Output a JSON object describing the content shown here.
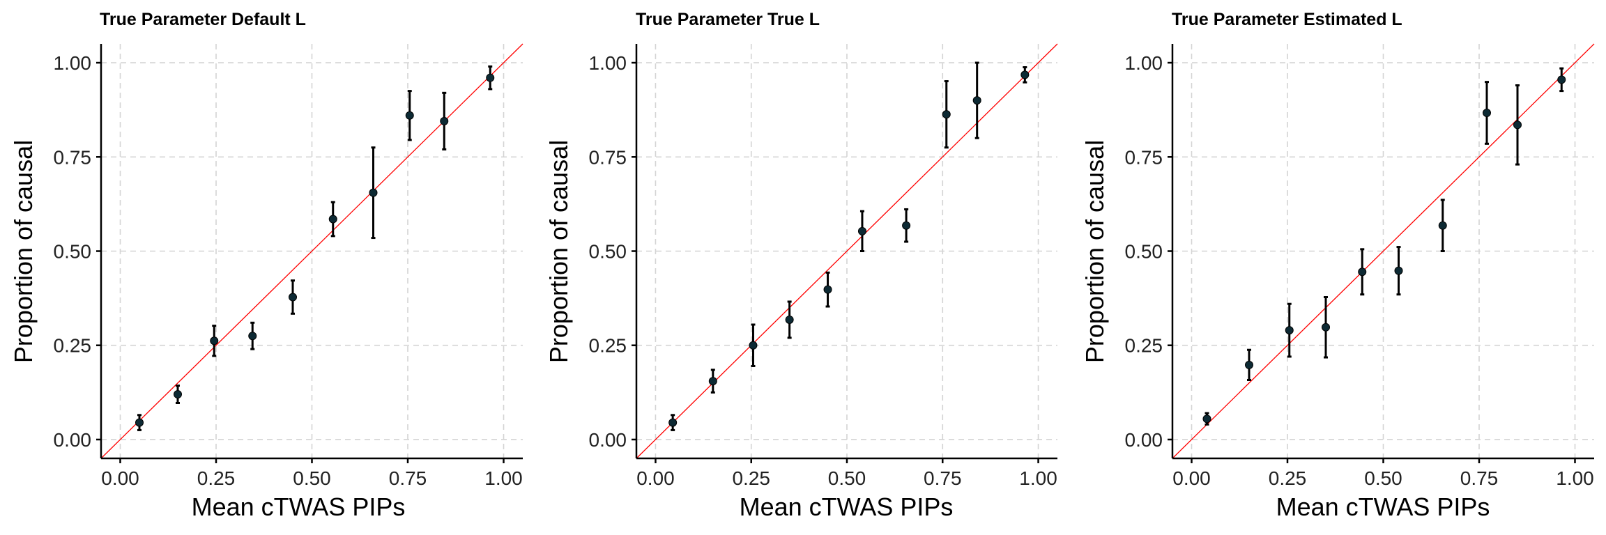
{
  "chart_data": [
    {
      "type": "scatter",
      "title": "True Parameter Default L",
      "xlabel": "Mean cTWAS PIPs",
      "ylabel": "Proportion of causal",
      "xlim": [
        -0.05,
        1.05
      ],
      "ylim": [
        -0.05,
        1.05
      ],
      "xticks": [
        "0.00",
        "0.25",
        "0.50",
        "0.75",
        "1.00"
      ],
      "yticks": [
        "0.00",
        "0.25",
        "0.50",
        "0.75",
        "1.00"
      ],
      "grid": true,
      "reference_line": "y = x",
      "points": [
        {
          "x": 0.05,
          "y": 0.045,
          "lo": 0.025,
          "hi": 0.065
        },
        {
          "x": 0.15,
          "y": 0.12,
          "lo": 0.097,
          "hi": 0.143
        },
        {
          "x": 0.245,
          "y": 0.262,
          "lo": 0.222,
          "hi": 0.302
        },
        {
          "x": 0.345,
          "y": 0.275,
          "lo": 0.24,
          "hi": 0.31
        },
        {
          "x": 0.45,
          "y": 0.378,
          "lo": 0.334,
          "hi": 0.422
        },
        {
          "x": 0.555,
          "y": 0.585,
          "lo": 0.54,
          "hi": 0.63
        },
        {
          "x": 0.66,
          "y": 0.655,
          "lo": 0.535,
          "hi": 0.775
        },
        {
          "x": 0.755,
          "y": 0.86,
          "lo": 0.795,
          "hi": 0.925
        },
        {
          "x": 0.845,
          "y": 0.845,
          "lo": 0.77,
          "hi": 0.92
        },
        {
          "x": 0.965,
          "y": 0.96,
          "lo": 0.93,
          "hi": 0.99
        }
      ]
    },
    {
      "type": "scatter",
      "title": "True Parameter True L",
      "xlabel": "Mean cTWAS PIPs",
      "ylabel": "Proportion of causal",
      "xlim": [
        -0.05,
        1.05
      ],
      "ylim": [
        -0.05,
        1.05
      ],
      "xticks": [
        "0.00",
        "0.25",
        "0.50",
        "0.75",
        "1.00"
      ],
      "yticks": [
        "0.00",
        "0.25",
        "0.50",
        "0.75",
        "1.00"
      ],
      "grid": true,
      "reference_line": "y = x",
      "points": [
        {
          "x": 0.045,
          "y": 0.045,
          "lo": 0.025,
          "hi": 0.065
        },
        {
          "x": 0.15,
          "y": 0.155,
          "lo": 0.125,
          "hi": 0.185
        },
        {
          "x": 0.255,
          "y": 0.25,
          "lo": 0.195,
          "hi": 0.305
        },
        {
          "x": 0.35,
          "y": 0.318,
          "lo": 0.27,
          "hi": 0.366
        },
        {
          "x": 0.45,
          "y": 0.398,
          "lo": 0.353,
          "hi": 0.443
        },
        {
          "x": 0.54,
          "y": 0.553,
          "lo": 0.5,
          "hi": 0.606
        },
        {
          "x": 0.655,
          "y": 0.568,
          "lo": 0.525,
          "hi": 0.611
        },
        {
          "x": 0.76,
          "y": 0.863,
          "lo": 0.775,
          "hi": 0.951
        },
        {
          "x": 0.84,
          "y": 0.9,
          "lo": 0.8,
          "hi": 1.0
        },
        {
          "x": 0.965,
          "y": 0.968,
          "lo": 0.948,
          "hi": 0.988
        }
      ]
    },
    {
      "type": "scatter",
      "title": "True Parameter Estimated L",
      "xlabel": "Mean cTWAS PIPs",
      "ylabel": "Proportion of causal",
      "xlim": [
        -0.05,
        1.05
      ],
      "ylim": [
        -0.05,
        1.05
      ],
      "xticks": [
        "0.00",
        "0.25",
        "0.50",
        "0.75",
        "1.00"
      ],
      "yticks": [
        "0.00",
        "0.25",
        "0.50",
        "0.75",
        "1.00"
      ],
      "grid": true,
      "reference_line": "y = x",
      "points": [
        {
          "x": 0.04,
          "y": 0.055,
          "lo": 0.04,
          "hi": 0.07
        },
        {
          "x": 0.15,
          "y": 0.198,
          "lo": 0.158,
          "hi": 0.238
        },
        {
          "x": 0.255,
          "y": 0.29,
          "lo": 0.22,
          "hi": 0.36
        },
        {
          "x": 0.35,
          "y": 0.298,
          "lo": 0.218,
          "hi": 0.378
        },
        {
          "x": 0.445,
          "y": 0.445,
          "lo": 0.385,
          "hi": 0.505
        },
        {
          "x": 0.54,
          "y": 0.448,
          "lo": 0.385,
          "hi": 0.511
        },
        {
          "x": 0.655,
          "y": 0.568,
          "lo": 0.5,
          "hi": 0.636
        },
        {
          "x": 0.77,
          "y": 0.867,
          "lo": 0.785,
          "hi": 0.949
        },
        {
          "x": 0.85,
          "y": 0.835,
          "lo": 0.73,
          "hi": 0.94
        },
        {
          "x": 0.965,
          "y": 0.955,
          "lo": 0.925,
          "hi": 0.985
        }
      ]
    }
  ]
}
